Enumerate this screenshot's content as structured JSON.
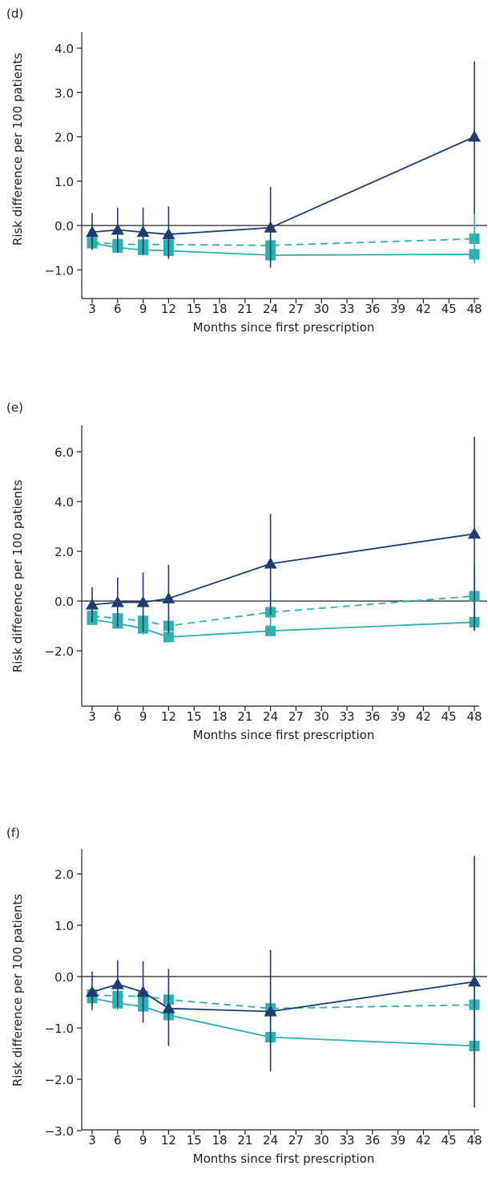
{
  "colors": {
    "navy": "#1f3d73",
    "teal": "#2fb1ad",
    "axis": "#222222",
    "zero_line": "#222222"
  },
  "chart_data": [
    {
      "type": "line",
      "panel_label": "(d)",
      "xlabel": "Months since first prescription",
      "ylabel": "Risk difference per 100 patients",
      "x_ticks": [
        3,
        6,
        9,
        12,
        15,
        18,
        21,
        24,
        27,
        30,
        33,
        36,
        39,
        42,
        45,
        48
      ],
      "y_ticks": [
        -1.0,
        0.0,
        1.0,
        2.0,
        3.0,
        4.0
      ],
      "y_tick_labels": [
        "−1.0",
        "0.0",
        "1.0",
        "2.0",
        "3.0",
        "4.0"
      ],
      "ylim": [
        -1.3,
        4.3
      ],
      "series": [
        {
          "color_key": "navy",
          "marker": "triangle",
          "dash": false,
          "x": [
            3,
            6,
            9,
            12,
            24,
            48
          ],
          "y": [
            -0.15,
            -0.1,
            -0.15,
            -0.2,
            -0.05,
            2.0
          ],
          "lo": [
            -0.55,
            -0.6,
            -0.65,
            -0.75,
            -0.95,
            0.25
          ],
          "hi": [
            0.28,
            0.4,
            0.4,
            0.43,
            0.87,
            3.7
          ]
        },
        {
          "color_key": "teal",
          "marker": "square",
          "dash": true,
          "x": [
            3,
            6,
            9,
            12,
            24,
            48
          ],
          "y": [
            -0.38,
            -0.42,
            -0.43,
            -0.43,
            -0.45,
            -0.3
          ],
          "lo": [
            -0.52,
            -0.58,
            -0.6,
            -0.62,
            -0.72,
            -0.85
          ],
          "hi": [
            -0.25,
            -0.25,
            -0.25,
            -0.25,
            -0.2,
            0.25
          ]
        },
        {
          "color_key": "teal",
          "marker": "square",
          "dash": false,
          "x": [
            3,
            6,
            9,
            12,
            24,
            48
          ],
          "y": [
            -0.4,
            -0.5,
            -0.55,
            -0.57,
            -0.67,
            -0.65
          ],
          "lo": [
            -0.5,
            -0.62,
            -0.68,
            -0.72,
            -0.82,
            -0.8
          ],
          "hi": [
            -0.3,
            -0.38,
            -0.42,
            -0.42,
            -0.52,
            -0.5
          ]
        }
      ]
    },
    {
      "type": "line",
      "panel_label": "(e)",
      "xlabel": "Months since first prescription",
      "ylabel": "Risk difference per 100 patients",
      "x_ticks": [
        3,
        6,
        9,
        12,
        15,
        18,
        21,
        24,
        27,
        30,
        33,
        36,
        39,
        42,
        45,
        48
      ],
      "y_ticks": [
        -2.0,
        0.0,
        2.0,
        4.0,
        6.0
      ],
      "y_tick_labels": [
        "−2.0",
        "0.0",
        "2.0",
        "4.0",
        "6.0"
      ],
      "ylim": [
        -2.6,
        7.0
      ],
      "series": [
        {
          "color_key": "navy",
          "marker": "triangle",
          "dash": false,
          "x": [
            3,
            6,
            9,
            12,
            24,
            48
          ],
          "y": [
            -0.15,
            -0.05,
            -0.05,
            0.1,
            1.5,
            2.7
          ],
          "lo": [
            -0.85,
            -1.05,
            -1.25,
            -1.3,
            -0.55,
            -1.2
          ],
          "hi": [
            0.55,
            0.95,
            1.15,
            1.45,
            3.5,
            6.6
          ]
        },
        {
          "color_key": "teal",
          "marker": "square",
          "dash": true,
          "x": [
            3,
            6,
            9,
            12,
            24,
            48
          ],
          "y": [
            -0.6,
            -0.7,
            -0.8,
            -1.0,
            -0.45,
            0.2
          ],
          "lo": [
            -0.85,
            -1.0,
            -1.15,
            -1.35,
            -1.1,
            -1.1
          ],
          "hi": [
            -0.35,
            -0.4,
            -0.45,
            -0.6,
            0.25,
            1.45
          ]
        },
        {
          "color_key": "teal",
          "marker": "square",
          "dash": false,
          "x": [
            3,
            6,
            9,
            12,
            24,
            48
          ],
          "y": [
            -0.75,
            -0.9,
            -1.1,
            -1.45,
            -1.2,
            -0.85
          ],
          "lo": [
            -0.95,
            -1.1,
            -1.35,
            -1.65,
            -1.4,
            -1.2
          ],
          "hi": [
            -0.55,
            -0.7,
            -0.85,
            -1.25,
            -1.0,
            -0.5
          ]
        }
      ]
    },
    {
      "type": "line",
      "panel_label": "(f)",
      "xlabel": "Months since first prescription",
      "ylabel": "Risk difference per 100 patients",
      "x_ticks": [
        3,
        6,
        9,
        12,
        15,
        18,
        21,
        24,
        27,
        30,
        33,
        36,
        39,
        42,
        45,
        48
      ],
      "y_ticks": [
        -3.0,
        -2.0,
        -1.0,
        0.0,
        1.0,
        2.0
      ],
      "y_tick_labels": [
        "−3.0",
        "−2.0",
        "−1.0",
        "0.0",
        "1.0",
        "2.0"
      ],
      "ylim": [
        -3.4,
        2.65
      ],
      "series": [
        {
          "color_key": "navy",
          "marker": "triangle",
          "dash": false,
          "x": [
            3,
            6,
            9,
            12,
            24,
            48
          ],
          "y": [
            -0.3,
            -0.15,
            -0.3,
            -0.62,
            -0.68,
            -0.1
          ],
          "lo": [
            -0.65,
            -0.6,
            -0.9,
            -1.35,
            -1.85,
            -2.55
          ],
          "hi": [
            0.1,
            0.32,
            0.3,
            0.15,
            0.52,
            2.35
          ]
        },
        {
          "color_key": "teal",
          "marker": "square",
          "dash": true,
          "x": [
            3,
            6,
            9,
            12,
            24,
            48
          ],
          "y": [
            -0.35,
            -0.38,
            -0.38,
            -0.45,
            -0.62,
            -0.55
          ],
          "lo": [
            -0.5,
            -0.55,
            -0.58,
            -0.7,
            -1.0,
            -1.3
          ],
          "hi": [
            -0.2,
            -0.2,
            -0.18,
            -0.22,
            -0.25,
            0.22
          ]
        },
        {
          "color_key": "teal",
          "marker": "square",
          "dash": false,
          "x": [
            3,
            6,
            9,
            12,
            24,
            48
          ],
          "y": [
            -0.42,
            -0.52,
            -0.58,
            -0.75,
            -1.18,
            -1.35
          ],
          "lo": [
            -0.55,
            -0.65,
            -0.72,
            -0.9,
            -1.35,
            -1.55
          ],
          "hi": [
            -0.3,
            -0.4,
            -0.45,
            -0.6,
            -1.0,
            -1.15
          ]
        }
      ]
    }
  ]
}
